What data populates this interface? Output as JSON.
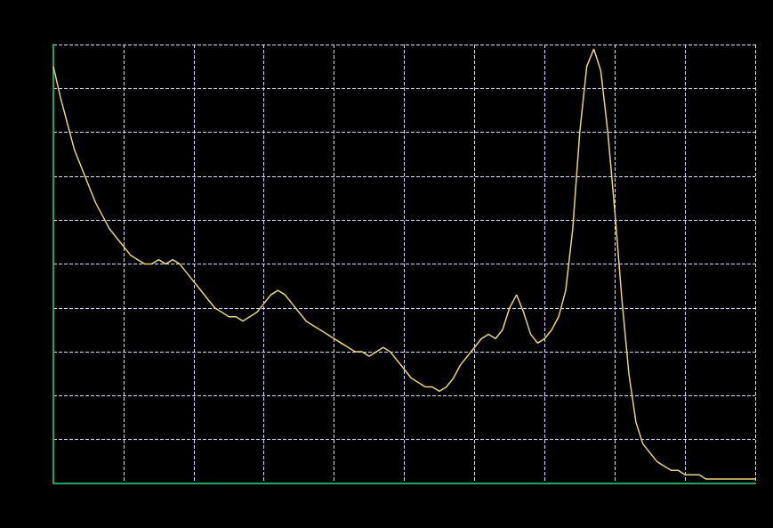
{
  "chart_data": {
    "type": "line",
    "x": [
      0,
      1,
      2,
      3,
      4,
      5,
      6,
      7,
      8,
      9,
      10,
      11,
      12,
      13,
      14,
      15,
      16,
      17,
      18,
      19,
      20,
      21,
      22,
      23,
      24,
      25,
      26,
      27,
      28,
      29,
      30,
      31,
      32,
      33,
      34,
      35,
      36,
      37,
      38,
      39,
      40,
      41,
      42,
      43,
      44,
      45,
      46,
      47,
      48,
      49,
      50,
      51,
      52,
      53,
      54,
      55,
      56,
      57,
      58,
      59,
      60,
      61,
      62,
      63,
      64,
      65,
      66,
      67,
      68,
      69,
      70,
      71,
      72,
      73,
      74,
      75,
      76,
      77,
      78,
      79,
      80,
      81,
      82,
      83,
      84,
      85,
      86,
      87,
      88,
      89,
      90,
      91,
      92,
      93,
      94,
      95,
      96,
      97,
      98,
      99,
      100
    ],
    "values": [
      95,
      88,
      82,
      76,
      72,
      68,
      64,
      61,
      58,
      56,
      54,
      52,
      51,
      50,
      50,
      51,
      50,
      51,
      50,
      48,
      46,
      44,
      42,
      40,
      39,
      38,
      38,
      37,
      38,
      39,
      41,
      43,
      44,
      43,
      41,
      39,
      37,
      36,
      35,
      34,
      33,
      32,
      31,
      30,
      30,
      29,
      30,
      31,
      30,
      28,
      26,
      24,
      23,
      22,
      22,
      21,
      22,
      24,
      27,
      29,
      31,
      33,
      34,
      33,
      35,
      40,
      43,
      39,
      34,
      32,
      33,
      35,
      38,
      44,
      58,
      80,
      95,
      99,
      94,
      80,
      62,
      42,
      25,
      14,
      9,
      7,
      5,
      4,
      3,
      3,
      2,
      2,
      2,
      1,
      1,
      1,
      1,
      1,
      1,
      1,
      1
    ],
    "color": "#e8d47a",
    "xlim": [
      0,
      100
    ],
    "xticks": [
      0,
      10,
      20,
      30,
      40,
      50,
      60,
      70,
      80,
      90,
      100
    ],
    "ylim": [
      0,
      100
    ],
    "yticks": [
      0,
      10,
      20,
      30,
      40,
      50,
      60,
      70,
      80,
      90,
      100
    ],
    "grid": true,
    "tick_labels": false
  }
}
